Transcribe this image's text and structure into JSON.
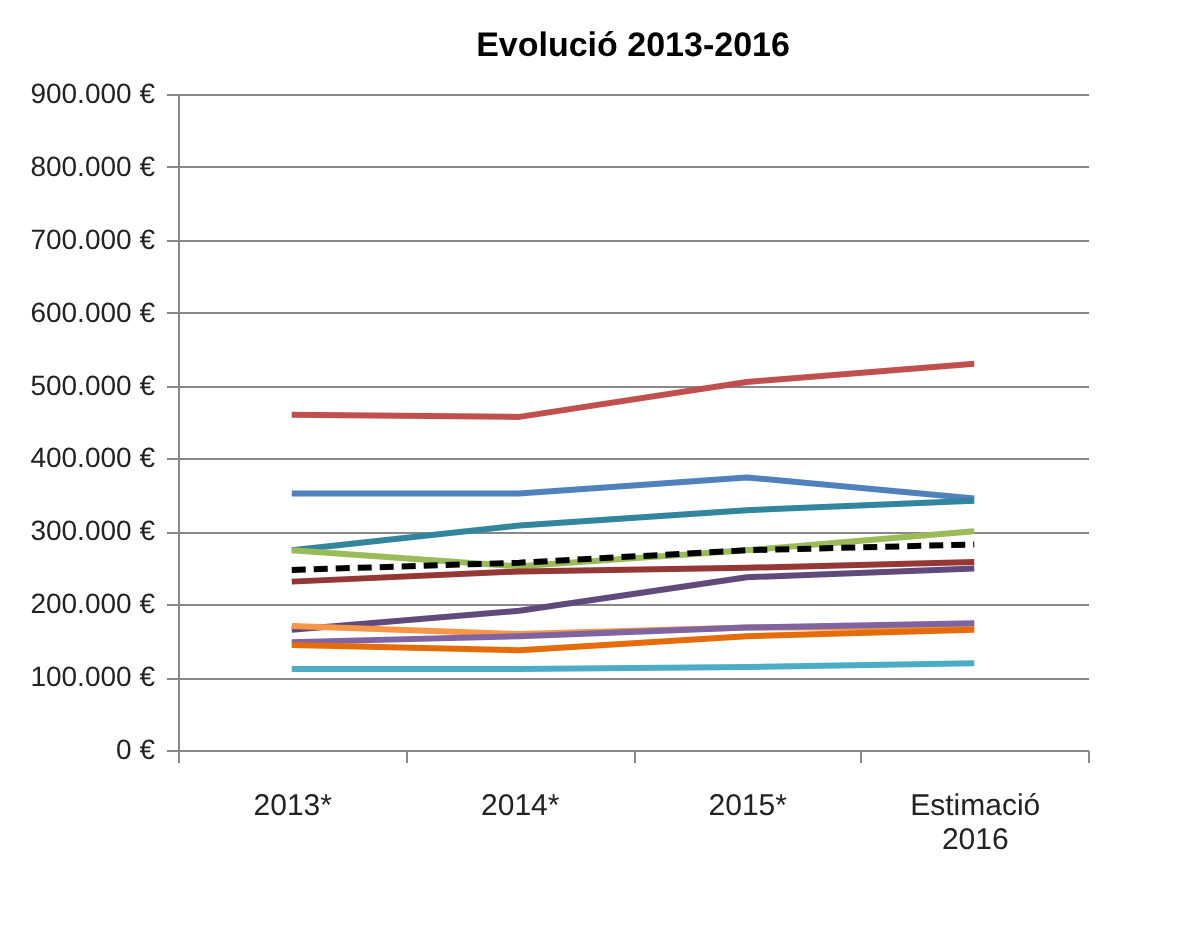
{
  "chart_data": {
    "type": "line",
    "title": "Evolució 2013-2016",
    "categories": [
      "2013*",
      "2014*",
      "2015*",
      "Estimació 2016"
    ],
    "ylim": [
      0,
      900000
    ],
    "yticks": [
      {
        "value": 0,
        "label": "0 €"
      },
      {
        "value": 100000,
        "label": "100.000 €"
      },
      {
        "value": 200000,
        "label": "200.000 €"
      },
      {
        "value": 300000,
        "label": "300.000 €"
      },
      {
        "value": 400000,
        "label": "400.000 €"
      },
      {
        "value": 500000,
        "label": "500.000 €"
      },
      {
        "value": 600000,
        "label": "600.000 €"
      },
      {
        "value": 700000,
        "label": "700.000 €"
      },
      {
        "value": 800000,
        "label": "800.000 €"
      },
      {
        "value": 900000,
        "label": "900.000 €"
      }
    ],
    "grid": "y",
    "legend": false,
    "marker": "none",
    "series": [
      {
        "color": "#c0504d",
        "values": [
          460000,
          457000,
          505000,
          530000
        ]
      },
      {
        "color": "#4f81bd",
        "values": [
          352000,
          352000,
          374000,
          345000
        ]
      },
      {
        "color": "#31859c",
        "values": [
          274000,
          308000,
          329000,
          342000
        ]
      },
      {
        "color": "#9bbb59",
        "values": [
          274000,
          252000,
          274000,
          300000
        ]
      },
      {
        "color": "#000000",
        "line_style": "dashed",
        "values": [
          247000,
          257000,
          274000,
          282000
        ]
      },
      {
        "color": "#953735",
        "values": [
          231000,
          245000,
          250000,
          258000
        ]
      },
      {
        "color": "#604a7b",
        "values": [
          165000,
          191000,
          237000,
          249000
        ]
      },
      {
        "color": "#f79646",
        "values": [
          170000,
          159000,
          168000,
          168000
        ]
      },
      {
        "color": "#8064a2",
        "values": [
          148000,
          156000,
          168000,
          174000
        ]
      },
      {
        "color": "#e46c0a",
        "values": [
          144000,
          137000,
          156000,
          165000
        ]
      },
      {
        "color": "#4bacc6",
        "values": [
          111000,
          111000,
          114000,
          119000
        ]
      }
    ]
  }
}
